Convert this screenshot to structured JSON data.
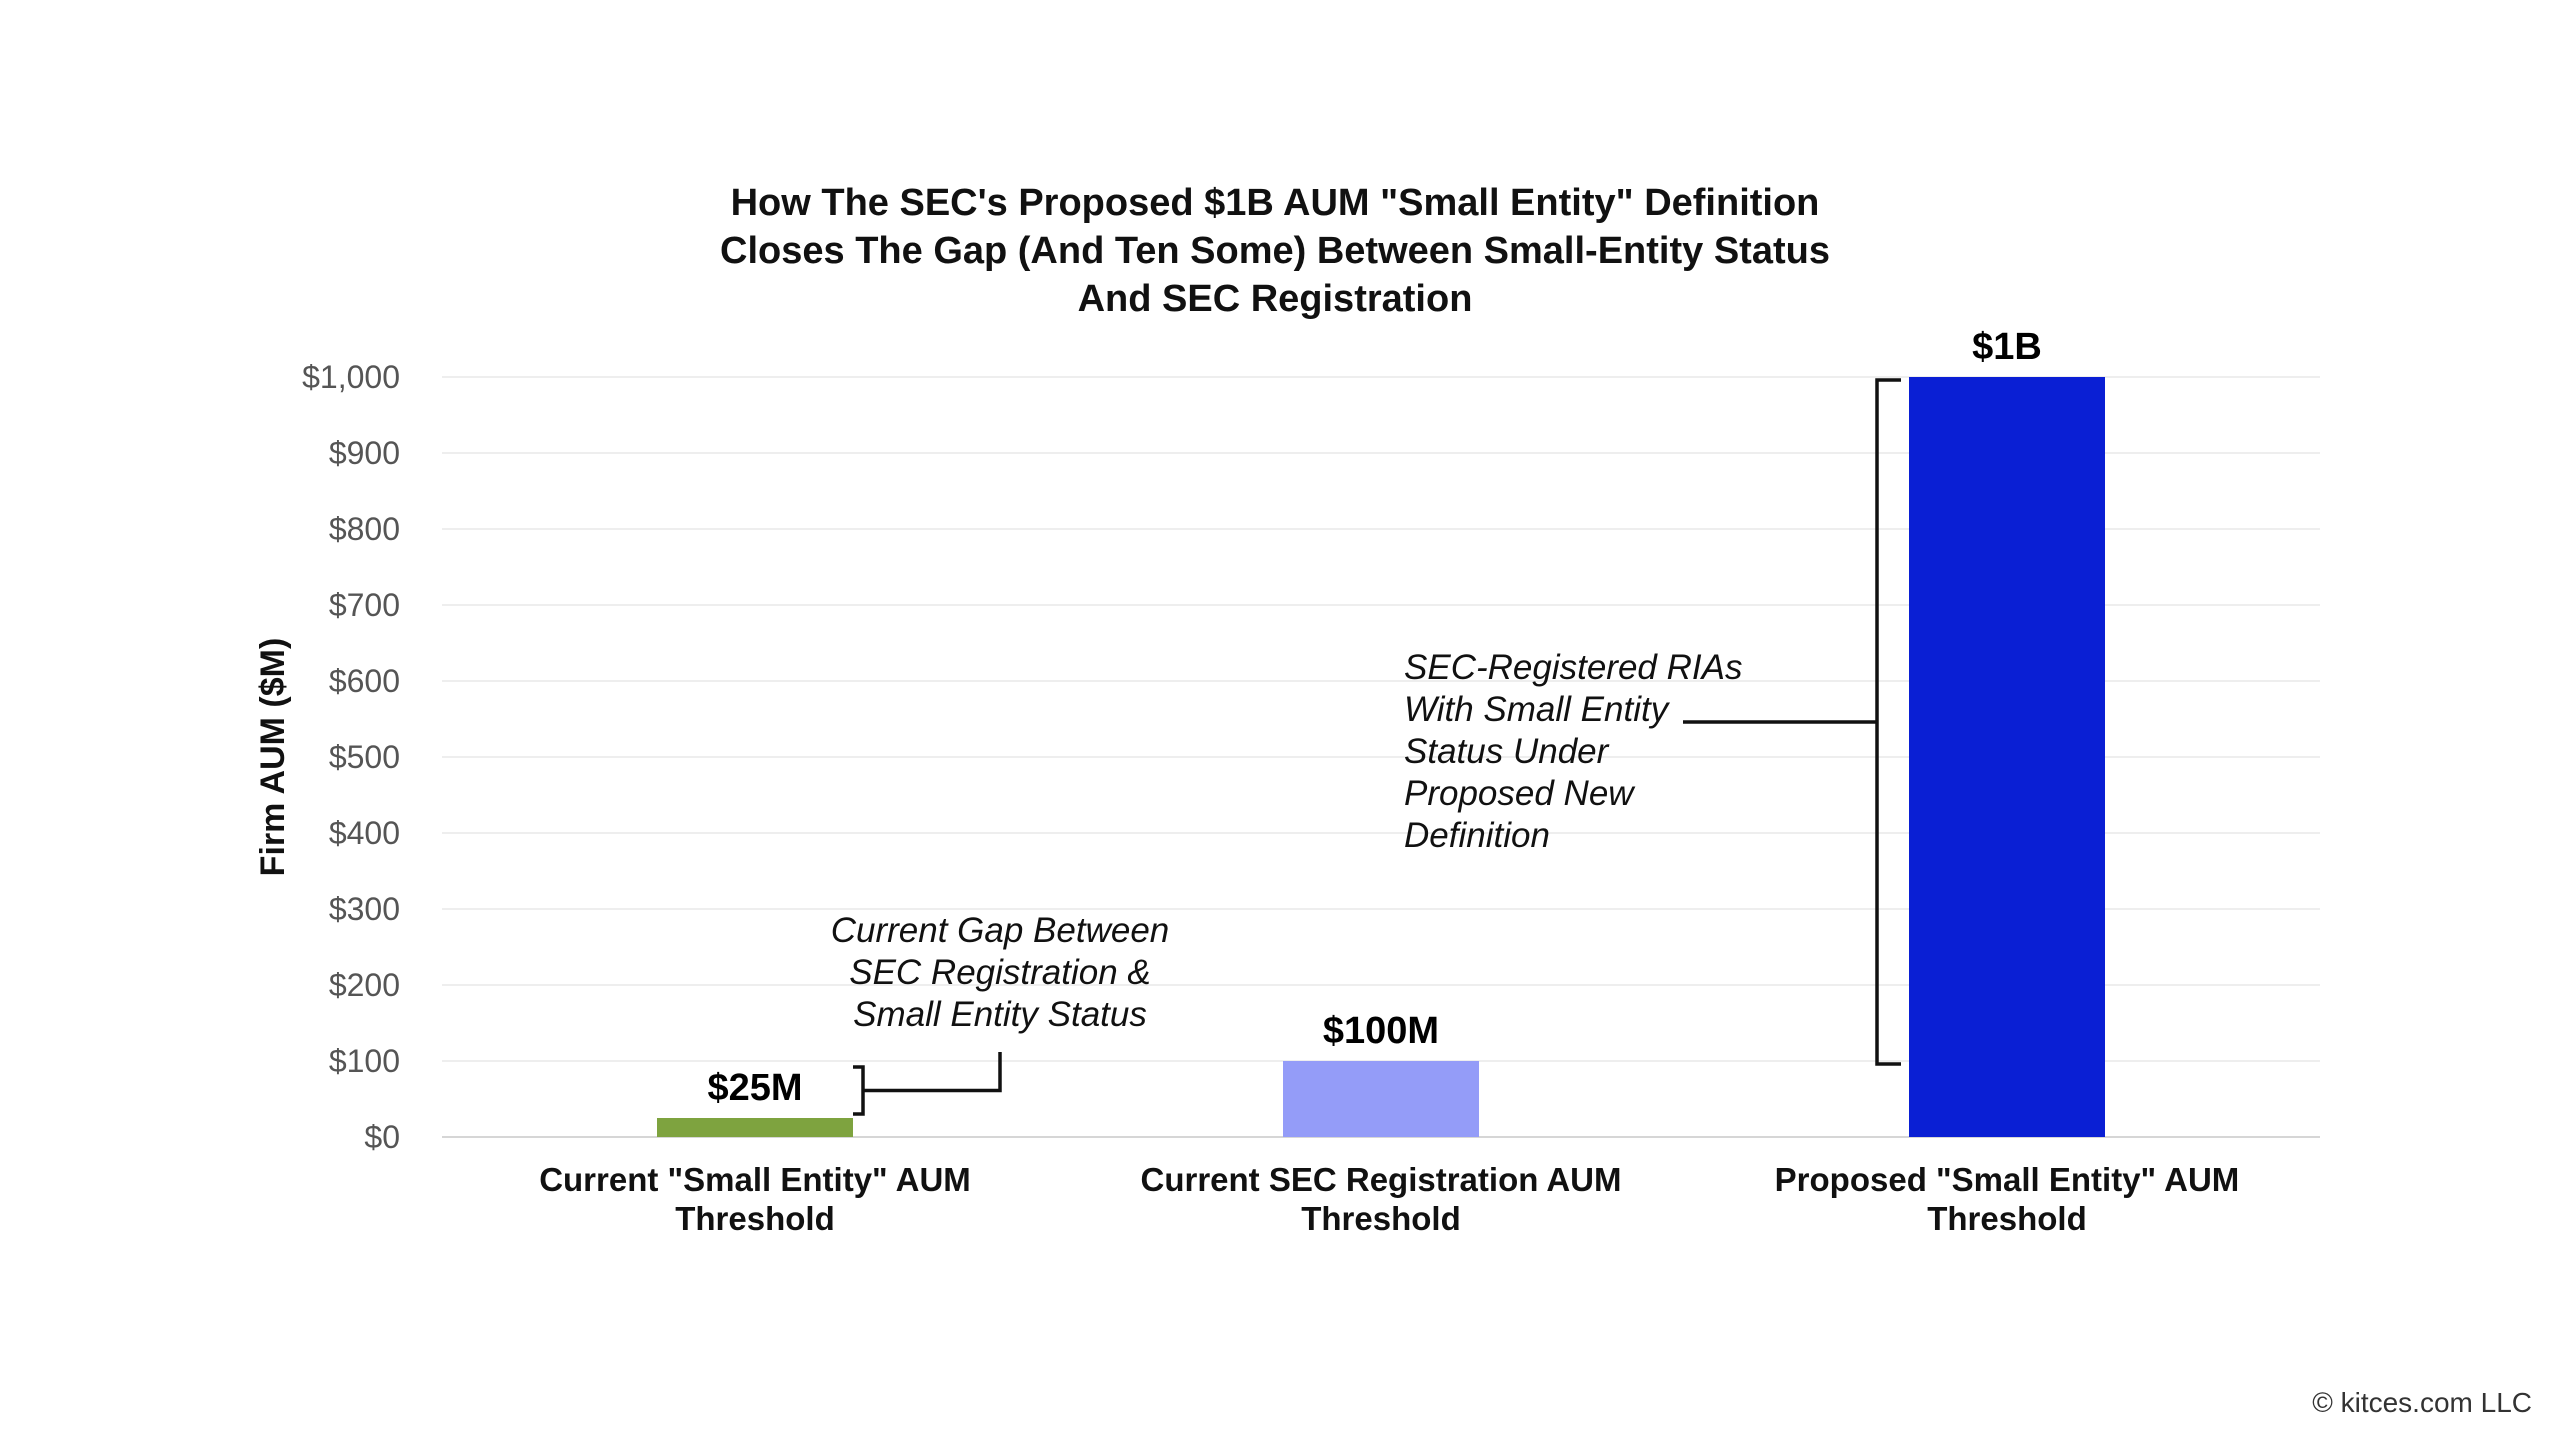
{
  "chart_data": {
    "type": "bar",
    "title_lines": [
      "How The SEC's Proposed $1B AUM \"Small Entity\" Definition",
      "Closes The Gap (And Ten Some) Between Small-Entity Status",
      "And SEC Registration"
    ],
    "ylabel": "Firm AUM ($M)",
    "xlabel": "",
    "ylim": [
      0,
      1000
    ],
    "y_ticks": [
      0,
      100,
      200,
      300,
      400,
      500,
      600,
      700,
      800,
      900,
      1000
    ],
    "y_tick_labels": [
      "$0",
      "$100",
      "$200",
      "$300",
      "$400",
      "$500",
      "$600",
      "$700",
      "$800",
      "$900",
      "$1,000"
    ],
    "grid": true,
    "legend": "none",
    "categories": [
      [
        "Current \"Small Entity\" AUM",
        "Threshold"
      ],
      [
        "Current SEC Registration AUM",
        "Threshold"
      ],
      [
        "Proposed \"Small Entity\" AUM",
        "Threshold"
      ]
    ],
    "values": [
      25,
      100,
      1000
    ],
    "data_labels": [
      "$25M",
      "$100M",
      "$1B"
    ],
    "colors": [
      "#7ea33f",
      "#949cf8",
      "#0a1fd4"
    ],
    "annotations": [
      {
        "lines": [
          "Current Gap Between",
          "SEC Registration &",
          "Small Entity Status"
        ],
        "spans": [
          25,
          100
        ]
      },
      {
        "lines": [
          "SEC-Registered RIAs",
          "With Small Entity",
          "Status Under",
          "Proposed New",
          "Definition"
        ],
        "spans": [
          100,
          1000
        ]
      }
    ]
  },
  "credit": "© kitces.com LLC"
}
